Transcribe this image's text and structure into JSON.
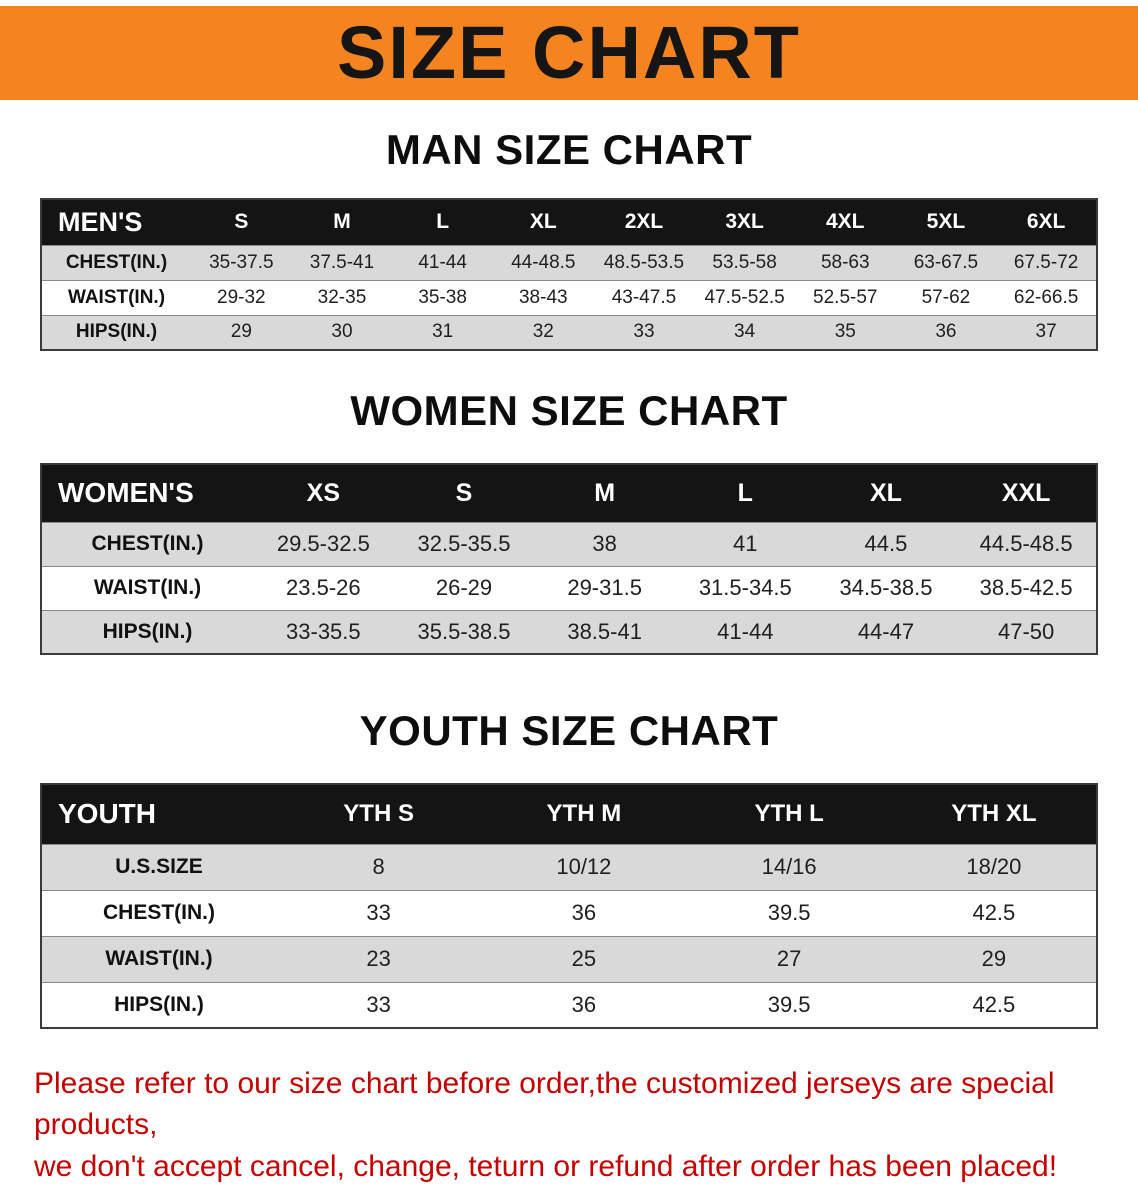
{
  "banner": {
    "title": "SIZE CHART",
    "bg_color": "#f5831f",
    "text_color": "#151515"
  },
  "men_chart": {
    "heading": "MAN SIZE CHART",
    "table": {
      "header": [
        "MEN'S",
        "S",
        "M",
        "L",
        "XL",
        "2XL",
        "3XL",
        "4XL",
        "5XL",
        "6XL"
      ],
      "rows": [
        [
          "CHEST(IN.)",
          "35-37.5",
          "37.5-41",
          "41-44",
          "44-48.5",
          "48.5-53.5",
          "53.5-58",
          "58-63",
          "63-67.5",
          "67.5-72"
        ],
        [
          "WAIST(IN.)",
          "29-32",
          "32-35",
          "35-38",
          "38-43",
          "43-47.5",
          "47.5-52.5",
          "52.5-57",
          "57-62",
          "62-66.5"
        ],
        [
          "HIPS(IN.)",
          "29",
          "30",
          "31",
          "32",
          "33",
          "34",
          "35",
          "36",
          "37"
        ]
      ]
    }
  },
  "women_chart": {
    "heading": "WOMEN SIZE CHART",
    "table": {
      "header": [
        "WOMEN'S",
        "XS",
        "S",
        "M",
        "L",
        "XL",
        "XXL"
      ],
      "rows": [
        [
          "CHEST(IN.)",
          "29.5-32.5",
          "32.5-35.5",
          "38",
          "41",
          "44.5",
          "44.5-48.5"
        ],
        [
          "WAIST(IN.)",
          "23.5-26",
          "26-29",
          "29-31.5",
          "31.5-34.5",
          "34.5-38.5",
          "38.5-42.5"
        ],
        [
          "HIPS(IN.)",
          "33-35.5",
          "35.5-38.5",
          "38.5-41",
          "41-44",
          "44-47",
          "47-50"
        ]
      ]
    }
  },
  "youth_chart": {
    "heading": "YOUTH SIZE CHART",
    "table": {
      "header": [
        "YOUTH",
        "YTH S",
        "YTH M",
        "YTH L",
        "YTH XL"
      ],
      "rows": [
        [
          "U.S.SIZE",
          "8",
          "10/12",
          "14/16",
          "18/20"
        ],
        [
          "CHEST(IN.)",
          "33",
          "36",
          "39.5",
          "42.5"
        ],
        [
          "WAIST(IN.)",
          "23",
          "25",
          "27",
          "29"
        ],
        [
          "HIPS(IN.)",
          "33",
          "36",
          "39.5",
          "42.5"
        ]
      ]
    }
  },
  "note": {
    "line1": "Please refer to our size chart before order,the customized jerseys are special products,",
    "line2": "we don't accept cancel, change, teturn or refund after order has been placed!",
    "text_color": "#c40000"
  },
  "colors": {
    "header_row_bg": "#141414",
    "alt_row_bg": "#d9d9d9"
  }
}
